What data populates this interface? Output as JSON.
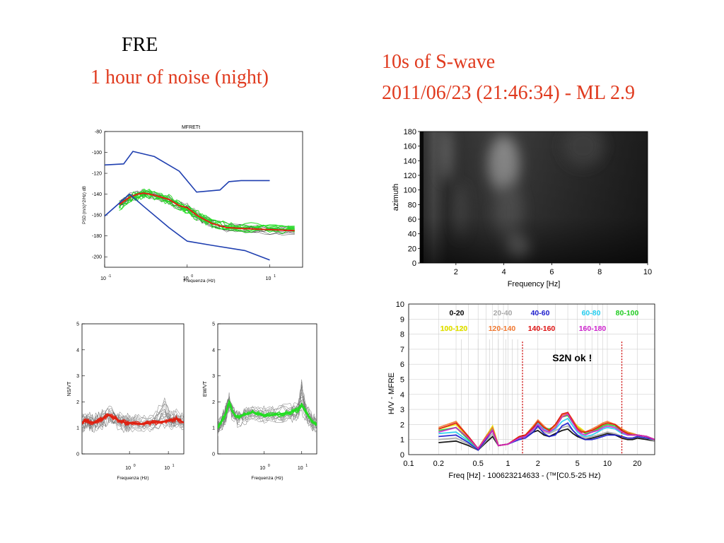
{
  "headings": {
    "station": "FRE",
    "noise": "1 hour of noise (night)",
    "swave": "10s of S-wave",
    "event": "2011/06/23 (21:46:34) - ML 2.9"
  },
  "colors": {
    "heading_red": "#e03a1e",
    "noise_model": "#1f3fb0",
    "ns_mean": "#e02010",
    "ew_mean": "#22dd22",
    "gray_curves": "#888888",
    "marker": "#cc0000"
  },
  "chart_data": [
    {
      "id": "psd",
      "type": "line",
      "title": "MFRETt",
      "xlabel": "Frequenza (Hz)",
      "ylabel": "PSD (m/s)^2/Hz) dB",
      "xscale": "log",
      "xlim": [
        0.1,
        25
      ],
      "ylim": [
        -210,
        -80
      ],
      "xticks": [
        {
          "base": "10",
          "exp": "-1"
        },
        {
          "base": "10",
          "exp": "0"
        },
        {
          "base": "10",
          "exp": "1"
        }
      ],
      "yticks": [
        "-80",
        "-100",
        "-120",
        "-140",
        "-160",
        "-180",
        "-200"
      ],
      "ytick_values": [
        -80,
        -100,
        -120,
        -140,
        -160,
        -180,
        -200
      ],
      "series": [
        {
          "role": "high-noise-model",
          "color": "#1f3fb0",
          "x": [
            0.1,
            0.17,
            0.22,
            0.4,
            0.8,
            1.3,
            2.5,
            3.2,
            4.5,
            10
          ],
          "y": [
            -112,
            -111,
            -99,
            -104,
            -118,
            -138,
            -136,
            -128,
            -127,
            -127
          ]
        },
        {
          "role": "low-noise-model",
          "color": "#1f3fb0",
          "x": [
            0.1,
            0.2,
            0.3,
            0.6,
            1.0,
            2.0,
            5.0,
            10
          ],
          "y": [
            -161,
            -140,
            -152,
            -172,
            -185,
            -189,
            -194,
            -203
          ]
        },
        {
          "role": "ns-mean",
          "color": "#e02010",
          "x": [
            0.15,
            0.2,
            0.25,
            0.3,
            0.4,
            0.6,
            0.8,
            1.0,
            1.3,
            1.6,
            2.0,
            3.0,
            5.0,
            10,
            20
          ],
          "y": [
            -150,
            -143,
            -140,
            -139,
            -141,
            -145,
            -151,
            -153,
            -160,
            -164,
            -168,
            -172,
            -173,
            -174,
            -175
          ]
        },
        {
          "role": "ew-mean",
          "color": "#22dd22",
          "x": [
            0.15,
            0.2,
            0.25,
            0.3,
            0.4,
            0.6,
            0.8,
            1.0,
            1.3,
            1.6,
            2.0,
            3.0,
            5.0,
            10,
            20
          ],
          "y": [
            -151,
            -144,
            -141,
            -139,
            -141,
            -145,
            -150,
            -154,
            -160,
            -163,
            -167,
            -171,
            -172,
            -172,
            -173
          ]
        }
      ]
    },
    {
      "id": "ns-ratio",
      "type": "line",
      "xlabel": "Frequenza (Hz)",
      "ylabel": "NS/VT",
      "xscale": "log",
      "xlim": [
        0.06,
        25
      ],
      "ylim": [
        0,
        5
      ],
      "yticks": [
        "0",
        "1",
        "2",
        "3",
        "4",
        "5"
      ],
      "ytick_values": [
        0,
        1,
        2,
        3,
        4,
        5
      ],
      "xticks": [
        {
          "base": "10",
          "exp": "0"
        },
        {
          "base": "10",
          "exp": "1"
        }
      ],
      "mean": {
        "color": "#e02010",
        "x": [
          0.06,
          0.08,
          0.1,
          0.15,
          0.2,
          0.3,
          0.5,
          0.8,
          1.0,
          2.0,
          4.0,
          8.0,
          12,
          16,
          25
        ],
        "y": [
          1.2,
          1.3,
          1.2,
          1.25,
          1.35,
          1.5,
          1.3,
          1.2,
          1.2,
          1.15,
          1.2,
          1.25,
          1.3,
          1.35,
          1.2
        ]
      }
    },
    {
      "id": "ew-ratio",
      "type": "line",
      "xlabel": "Frequenza (Hz)",
      "ylabel": "EW/VT",
      "xscale": "log",
      "xlim": [
        0.06,
        25
      ],
      "ylim": [
        0,
        5
      ],
      "yticks": [
        "0",
        "1",
        "2",
        "3",
        "4",
        "5"
      ],
      "ytick_values": [
        0,
        1,
        2,
        3,
        4,
        5
      ],
      "xticks": [
        {
          "base": "10",
          "exp": "0"
        },
        {
          "base": "10",
          "exp": "1"
        }
      ],
      "mean": {
        "color": "#22dd22",
        "x": [
          0.06,
          0.08,
          0.1,
          0.12,
          0.15,
          0.2,
          0.3,
          0.5,
          1.0,
          2.0,
          5.0,
          8.0,
          10,
          13,
          18,
          25
        ],
        "y": [
          1.0,
          1.3,
          1.6,
          2.0,
          1.6,
          1.4,
          1.5,
          1.6,
          1.5,
          1.5,
          1.6,
          1.7,
          1.9,
          1.6,
          1.3,
          1.1
        ]
      }
    },
    {
      "id": "azimuth",
      "type": "heatmap",
      "xlabel": "Frequency [Hz]",
      "ylabel": "azimuth",
      "xlim": [
        0.5,
        10
      ],
      "ylim": [
        0,
        180
      ],
      "xticks": [
        "2",
        "4",
        "6",
        "8",
        "10"
      ],
      "xtick_values": [
        2,
        4,
        6,
        8,
        10
      ],
      "yticks": [
        "0",
        "20",
        "40",
        "60",
        "80",
        "100",
        "120",
        "140",
        "160",
        "180"
      ],
      "ytick_values": [
        0,
        20,
        40,
        60,
        80,
        100,
        120,
        140,
        160,
        180
      ]
    },
    {
      "id": "hv",
      "type": "line",
      "xlabel": "Freq [Hz] - 100623214633 - (™[C0.5-25 Hz)",
      "ylabel": "H/V - MFRE",
      "xscale": "log",
      "xlim": [
        0.1,
        30
      ],
      "ylim": [
        0,
        10
      ],
      "xticks": [
        "0.1",
        "0.2",
        "0.5",
        "1",
        "2",
        "5",
        "10",
        "20"
      ],
      "xtick_values": [
        0.1,
        0.2,
        0.5,
        1,
        2,
        5,
        10,
        20
      ],
      "yticks": [
        "0",
        "1",
        "2",
        "3",
        "4",
        "5",
        "6",
        "7",
        "8",
        "9",
        "10"
      ],
      "ytick_values": [
        0,
        1,
        2,
        3,
        4,
        5,
        6,
        7,
        8,
        9,
        10
      ],
      "annotation": "S2N ok !",
      "markers": [
        1.4,
        14
      ],
      "legend": [
        {
          "label": "0-20",
          "color": "#000000"
        },
        {
          "label": "20-40",
          "color": "#a8a8a8"
        },
        {
          "label": "40-60",
          "color": "#1a1acc"
        },
        {
          "label": "60-80",
          "color": "#22ccee"
        },
        {
          "label": "80-100",
          "color": "#22cc22"
        },
        {
          "label": "100-120",
          "color": "#e8e800"
        },
        {
          "label": "120-140",
          "color": "#f07830"
        },
        {
          "label": "140-160",
          "color": "#dd1111"
        },
        {
          "label": "160-180",
          "color": "#cc22cc"
        }
      ],
      "x": [
        0.2,
        0.3,
        0.4,
        0.5,
        0.6,
        0.7,
        0.8,
        1.0,
        1.3,
        1.5,
        1.8,
        2.0,
        2.3,
        2.6,
        3.0,
        3.5,
        4.0,
        4.5,
        5.0,
        5.5,
        6.0,
        7.0,
        8.0,
        9.0,
        10,
        12,
        14,
        16,
        18,
        20,
        25,
        30
      ],
      "series": [
        {
          "name": "0-20",
          "color": "#000000",
          "values": [
            0.8,
            0.9,
            0.6,
            0.3,
            0.8,
            1.2,
            0.6,
            0.7,
            1.1,
            1.2,
            1.5,
            1.6,
            1.3,
            1.2,
            1.4,
            1.6,
            1.7,
            1.4,
            1.2,
            1.1,
            1.0,
            1.1,
            1.2,
            1.3,
            1.4,
            1.3,
            1.1,
            1.0,
            1.0,
            1.1,
            1.0,
            0.9
          ]
        },
        {
          "name": "20-40",
          "color": "#a8a8a8",
          "values": [
            1.0,
            1.1,
            0.7,
            0.3,
            0.9,
            1.4,
            0.6,
            0.7,
            1.1,
            1.2,
            1.6,
            1.8,
            1.5,
            1.4,
            1.6,
            1.8,
            1.9,
            1.6,
            1.3,
            1.2,
            1.1,
            1.2,
            1.3,
            1.4,
            1.5,
            1.4,
            1.2,
            1.1,
            1.1,
            1.2,
            1.1,
            0.9
          ]
        },
        {
          "name": "40-60",
          "color": "#1a1acc",
          "values": [
            1.2,
            1.3,
            0.8,
            0.3,
            1.0,
            1.6,
            0.6,
            0.7,
            1.0,
            1.1,
            1.5,
            1.9,
            1.4,
            1.2,
            1.3,
            1.9,
            2.1,
            1.6,
            1.3,
            1.1,
            1.0,
            1.0,
            1.1,
            1.2,
            1.3,
            1.3,
            1.2,
            1.1,
            1.1,
            1.2,
            1.1,
            1.0
          ]
        },
        {
          "name": "60-80",
          "color": "#22ccee",
          "values": [
            1.4,
            1.5,
            0.9,
            0.4,
            1.1,
            1.7,
            0.6,
            0.7,
            1.1,
            1.2,
            1.7,
            2.1,
            1.7,
            1.5,
            1.7,
            2.2,
            2.4,
            1.9,
            1.5,
            1.3,
            1.2,
            1.3,
            1.5,
            1.7,
            1.8,
            1.7,
            1.4,
            1.3,
            1.3,
            1.3,
            1.2,
            1.0
          ]
        },
        {
          "name": "80-100",
          "color": "#22cc22",
          "values": [
            1.6,
            1.8,
            1.0,
            0.4,
            1.2,
            1.8,
            0.6,
            0.7,
            1.2,
            1.3,
            1.8,
            2.2,
            1.8,
            1.7,
            1.9,
            2.5,
            2.6,
            2.1,
            1.8,
            1.6,
            1.4,
            1.5,
            1.7,
            1.9,
            2.0,
            1.9,
            1.6,
            1.4,
            1.4,
            1.3,
            1.2,
            1.0
          ]
        },
        {
          "name": "100-120",
          "color": "#e8e800",
          "values": [
            1.7,
            2.0,
            1.1,
            0.4,
            1.2,
            1.9,
            0.6,
            0.7,
            1.2,
            1.3,
            1.9,
            2.2,
            1.8,
            1.6,
            1.9,
            2.5,
            2.7,
            2.2,
            1.9,
            1.7,
            1.5,
            1.6,
            1.8,
            2.0,
            2.1,
            2.0,
            1.7,
            1.5,
            1.4,
            1.3,
            1.2,
            1.0
          ]
        },
        {
          "name": "120-140",
          "color": "#f07830",
          "values": [
            1.8,
            2.2,
            1.2,
            0.4,
            1.2,
            1.8,
            0.6,
            0.7,
            1.2,
            1.3,
            1.9,
            2.3,
            1.9,
            1.6,
            2.0,
            2.6,
            2.8,
            2.3,
            1.8,
            1.6,
            1.5,
            1.7,
            1.9,
            2.1,
            2.2,
            2.0,
            1.7,
            1.5,
            1.4,
            1.3,
            1.2,
            1.0
          ]
        },
        {
          "name": "140-160",
          "color": "#dd1111",
          "values": [
            1.7,
            2.1,
            1.2,
            0.4,
            1.1,
            1.6,
            0.6,
            0.7,
            1.2,
            1.3,
            1.8,
            2.2,
            1.8,
            1.6,
            2.0,
            2.7,
            2.8,
            2.2,
            1.7,
            1.5,
            1.5,
            1.6,
            1.8,
            2.0,
            2.1,
            2.0,
            1.6,
            1.4,
            1.3,
            1.3,
            1.2,
            1.0
          ]
        },
        {
          "name": "160-180",
          "color": "#cc22cc",
          "values": [
            1.5,
            1.8,
            1.1,
            0.4,
            1.1,
            1.6,
            0.6,
            0.7,
            1.1,
            1.2,
            1.7,
            2.0,
            1.6,
            1.5,
            1.8,
            2.5,
            2.7,
            2.1,
            1.6,
            1.4,
            1.3,
            1.5,
            1.6,
            1.8,
            1.9,
            1.8,
            1.5,
            1.3,
            1.3,
            1.3,
            1.2,
            1.0
          ]
        }
      ]
    }
  ]
}
